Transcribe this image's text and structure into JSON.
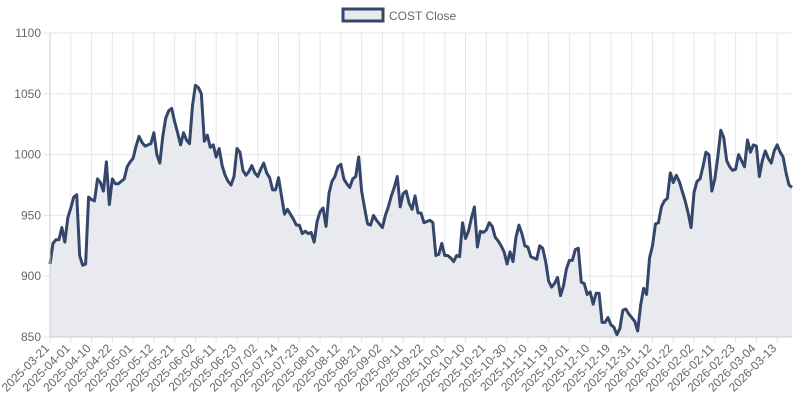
{
  "chart_data": {
    "type": "area",
    "title": "",
    "xlabel": "",
    "ylabel": "",
    "ylim": [
      850,
      1100
    ],
    "yticks": [
      850,
      900,
      950,
      1000,
      1050,
      1100
    ],
    "grid": true,
    "legend": "top-center",
    "series": [
      {
        "name": "COST Close",
        "color": "#34466a",
        "fill": "#e9eaef",
        "x": [
          "2025-03-21",
          "2025-03-24",
          "2025-03-25",
          "2025-03-26",
          "2025-03-27",
          "2025-03-28",
          "2025-03-31",
          "2025-04-01",
          "2025-04-02",
          "2025-04-03",
          "2025-04-04",
          "2025-04-07",
          "2025-04-08",
          "2025-04-09",
          "2025-04-10",
          "2025-04-11",
          "2025-04-14",
          "2025-04-15",
          "2025-04-16",
          "2025-04-17",
          "2025-04-21",
          "2025-04-22",
          "2025-04-23",
          "2025-04-24",
          "2025-04-25",
          "2025-04-28",
          "2025-04-29",
          "2025-04-30",
          "2025-05-01",
          "2025-05-02",
          "2025-05-05",
          "2025-05-06",
          "2025-05-07",
          "2025-05-08",
          "2025-05-09",
          "2025-05-12",
          "2025-05-13",
          "2025-05-14",
          "2025-05-15",
          "2025-05-16",
          "2025-05-19",
          "2025-05-20",
          "2025-05-21",
          "2025-05-22",
          "2025-05-23",
          "2025-05-27",
          "2025-05-28",
          "2025-05-29",
          "2025-05-30",
          "2025-06-02",
          "2025-06-03",
          "2025-06-04",
          "2025-06-05",
          "2025-06-06",
          "2025-06-09",
          "2025-06-10",
          "2025-06-11",
          "2025-06-12",
          "2025-06-13",
          "2025-06-16",
          "2025-06-17",
          "2025-06-18",
          "2025-06-20",
          "2025-06-23",
          "2025-06-24",
          "2025-06-25",
          "2025-06-26",
          "2025-06-27",
          "2025-06-30",
          "2025-07-01",
          "2025-07-02",
          "2025-07-03",
          "2025-07-07",
          "2025-07-08",
          "2025-07-09",
          "2025-07-10",
          "2025-07-11",
          "2025-07-14",
          "2025-07-15",
          "2025-07-16",
          "2025-07-17",
          "2025-07-18",
          "2025-07-21",
          "2025-07-22",
          "2025-07-23",
          "2025-07-24",
          "2025-07-25",
          "2025-07-28",
          "2025-07-29",
          "2025-07-30",
          "2025-07-31",
          "2025-08-01",
          "2025-08-04",
          "2025-08-05",
          "2025-08-06",
          "2025-08-07",
          "2025-08-08",
          "2025-08-11",
          "2025-08-12",
          "2025-08-13",
          "2025-08-14",
          "2025-08-15",
          "2025-08-18",
          "2025-08-19",
          "2025-08-20",
          "2025-08-21",
          "2025-08-22",
          "2025-08-25",
          "2025-08-26",
          "2025-08-27",
          "2025-08-28",
          "2025-08-29",
          "2025-09-02",
          "2025-09-03",
          "2025-09-04",
          "2025-09-05",
          "2025-09-08",
          "2025-09-09",
          "2025-09-10",
          "2025-09-11",
          "2025-09-12",
          "2025-09-15",
          "2025-09-16",
          "2025-09-17",
          "2025-09-18",
          "2025-09-19",
          "2025-09-22",
          "2025-09-23",
          "2025-09-24",
          "2025-09-25",
          "2025-09-26",
          "2025-09-29",
          "2025-09-30",
          "2025-10-01",
          "2025-10-02",
          "2025-10-03",
          "2025-10-06",
          "2025-10-07",
          "2025-10-08",
          "2025-10-09",
          "2025-10-10",
          "2025-10-13",
          "2025-10-14",
          "2025-10-15",
          "2025-10-16",
          "2025-10-17",
          "2025-10-20",
          "2025-10-21",
          "2025-10-22",
          "2025-10-23",
          "2025-10-24",
          "2025-10-27",
          "2025-10-28",
          "2025-10-29",
          "2025-10-30",
          "2025-10-31",
          "2025-11-03",
          "2025-11-04",
          "2025-11-05",
          "2025-11-06",
          "2025-11-07",
          "2025-11-10",
          "2025-11-11",
          "2025-11-12",
          "2025-11-13",
          "2025-11-14",
          "2025-11-17",
          "2025-11-18",
          "2025-11-19",
          "2025-11-20",
          "2025-11-21",
          "2025-11-24",
          "2025-11-25",
          "2025-11-26",
          "2025-11-28",
          "2025-12-01",
          "2025-12-02",
          "2025-12-03",
          "2025-12-04",
          "2025-12-05",
          "2025-12-08",
          "2025-12-09",
          "2025-12-10",
          "2025-12-11",
          "2025-12-12",
          "2025-12-15",
          "2025-12-16",
          "2025-12-17",
          "2025-12-18",
          "2025-12-19",
          "2025-12-22",
          "2025-12-23",
          "2025-12-24",
          "2025-12-26",
          "2025-12-29",
          "2025-12-30",
          "2025-12-31",
          "2026-01-02",
          "2026-01-05",
          "2026-01-06",
          "2026-01-07",
          "2026-01-08",
          "2026-01-09",
          "2026-01-12",
          "2026-01-13",
          "2026-01-14",
          "2026-01-15",
          "2026-01-16",
          "2026-01-20",
          "2026-01-21",
          "2026-01-22",
          "2026-01-23",
          "2026-01-26",
          "2026-01-27",
          "2026-01-28",
          "2026-01-29",
          "2026-01-30",
          "2026-02-02",
          "2026-02-03",
          "2026-02-04",
          "2026-02-05",
          "2026-02-06",
          "2026-02-09",
          "2026-02-10",
          "2026-02-11",
          "2026-02-12",
          "2026-02-13",
          "2026-02-17",
          "2026-02-18",
          "2026-02-19",
          "2026-02-20",
          "2026-02-23",
          "2026-02-24",
          "2026-02-25",
          "2026-02-26",
          "2026-02-27",
          "2026-03-02",
          "2026-03-03",
          "2026-03-04",
          "2026-03-05",
          "2026-03-06",
          "2026-03-09",
          "2026-03-10",
          "2026-03-11",
          "2026-03-12",
          "2026-03-13",
          "2026-03-16",
          "2026-03-17",
          "2026-03-18",
          "2026-03-19",
          "2026-03-20"
        ],
        "values": [
          910,
          927,
          930,
          930,
          940,
          928,
          948,
          956,
          965,
          967,
          917,
          909,
          910,
          965,
          963,
          962,
          980,
          977,
          970,
          994,
          959,
          980,
          976,
          976,
          978,
          980,
          990,
          994,
          997,
          1007,
          1015,
          1010,
          1007,
          1008,
          1009,
          1018,
          1000,
          993,
          1015,
          1030,
          1036,
          1038,
          1027,
          1018,
          1008,
          1018,
          1012,
          1009,
          1040,
          1057,
          1055,
          1050,
          1011,
          1016,
          1006,
          1008,
          998,
          1005,
          991,
          983,
          978,
          975,
          982,
          1005,
          1002,
          987,
          983,
          986,
          991,
          985,
          982,
          988,
          993,
          985,
          981,
          971,
          971,
          981,
          966,
          951,
          955,
          951,
          947,
          942,
          942,
          935,
          937,
          935,
          936,
          928,
          945,
          953,
          956,
          941,
          968,
          978,
          982,
          990,
          992,
          980,
          976,
          973,
          980,
          982,
          998,
          970,
          956,
          943,
          942,
          950,
          946,
          943,
          940,
          950,
          957,
          966,
          973,
          982,
          957,
          968,
          970,
          960,
          955,
          966,
          952,
          952,
          944,
          945,
          946,
          944,
          917,
          918,
          927,
          917,
          917,
          915,
          912,
          917,
          916,
          944,
          931,
          937,
          948,
          957,
          924,
          937,
          936,
          938,
          944,
          941,
          932,
          929,
          925,
          920,
          910,
          920,
          912,
          932,
          942,
          935,
          925,
          924,
          916,
          915,
          914,
          925,
          923,
          912,
          896,
          891,
          894,
          899,
          884,
          892,
          906,
          913,
          913,
          922,
          923,
          895,
          894,
          885,
          887,
          877,
          886,
          886,
          862,
          862,
          866,
          860,
          858,
          852,
          857,
          872,
          873,
          869,
          866,
          863,
          855,
          876,
          890,
          885,
          915,
          925,
          943,
          944,
          957,
          962,
          964,
          985,
          977,
          983,
          978,
          970,
          962,
          952,
          940,
          969,
          978,
          980,
          990,
          1002,
          1000,
          970,
          980,
          998,
          1020,
          1014,
          995,
          990,
          987,
          988,
          1000,
          995,
          990,
          1012,
          1002,
          1008,
          1007,
          982,
          995,
          1003,
          997,
          993,
          1003,
          1008,
          1002,
          998,
          985,
          975,
          973
        ]
      }
    ],
    "x_tick_labels": [
      "2025-03-21",
      "2025-04-01",
      "2025-04-10",
      "2025-04-22",
      "2025-05-01",
      "2025-05-12",
      "2025-05-21",
      "2025-06-02",
      "2025-06-11",
      "2025-06-23",
      "2025-07-02",
      "2025-07-14",
      "2025-07-23",
      "2025-08-01",
      "2025-08-12",
      "2025-08-21",
      "2025-09-02",
      "2025-09-11",
      "2025-09-22",
      "2025-10-01",
      "2025-10-10",
      "2025-10-21",
      "2025-10-30",
      "2025-11-10",
      "2025-11-19",
      "2025-12-01",
      "2025-12-10",
      "2025-12-19",
      "2025-12-31",
      "2026-01-12",
      "2026-01-22",
      "2026-02-02",
      "2026-02-11",
      "2026-02-23",
      "2026-03-04",
      "2026-03-13"
    ]
  }
}
